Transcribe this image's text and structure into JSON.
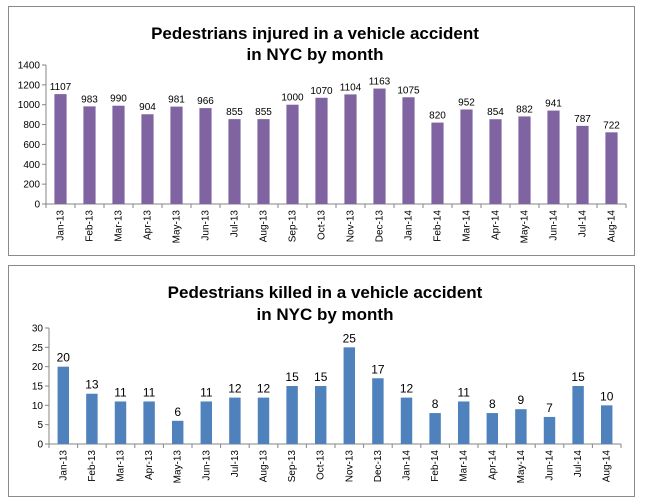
{
  "chart_data": [
    {
      "type": "bar",
      "title_lines": [
        "Pedestrians injured in a vehicle accident",
        "in NYC by month"
      ],
      "categories": [
        "Jan-13",
        "Feb-13",
        "Mar-13",
        "Apr-13",
        "May-13",
        "Jun-13",
        "Jul-13",
        "Aug-13",
        "Sep-13",
        "Oct-13",
        "Nov-13",
        "Dec-13",
        "Jan-14",
        "Feb-14",
        "Mar-14",
        "Apr-14",
        "May-14",
        "Jun-14",
        "Jul-14",
        "Aug-14"
      ],
      "values": [
        1107,
        983,
        990,
        904,
        981,
        966,
        855,
        855,
        1000,
        1070,
        1104,
        1163,
        1075,
        820,
        952,
        854,
        882,
        941,
        787,
        722
      ],
      "ylim": [
        0,
        1400
      ],
      "yticks": [
        0,
        200,
        400,
        600,
        800,
        1000,
        1200,
        1400
      ],
      "grid": false,
      "legend": "none",
      "bar_color": "#8064A2",
      "data_labels": true
    },
    {
      "type": "bar",
      "title_lines": [
        "Pedestrians killed in a vehicle accident",
        "in NYC by month"
      ],
      "categories": [
        "Jan-13",
        "Feb-13",
        "Mar-13",
        "Apr-13",
        "May-13",
        "Jun-13",
        "Jul-13",
        "Aug-13",
        "Sep-13",
        "Oct-13",
        "Nov-13",
        "Dec-13",
        "Jan-14",
        "Feb-14",
        "Mar-14",
        "Apr-14",
        "May-14",
        "Jun-14",
        "Jul-14",
        "Aug-14"
      ],
      "values": [
        20,
        13,
        11,
        11,
        6,
        11,
        12,
        12,
        15,
        15,
        25,
        17,
        12,
        8,
        11,
        8,
        9,
        7,
        15,
        10
      ],
      "ylim": [
        0,
        30
      ],
      "yticks": [
        0,
        5,
        10,
        15,
        20,
        25,
        30
      ],
      "grid": false,
      "legend": "none",
      "bar_color": "#4F81BD",
      "data_labels": true
    }
  ]
}
